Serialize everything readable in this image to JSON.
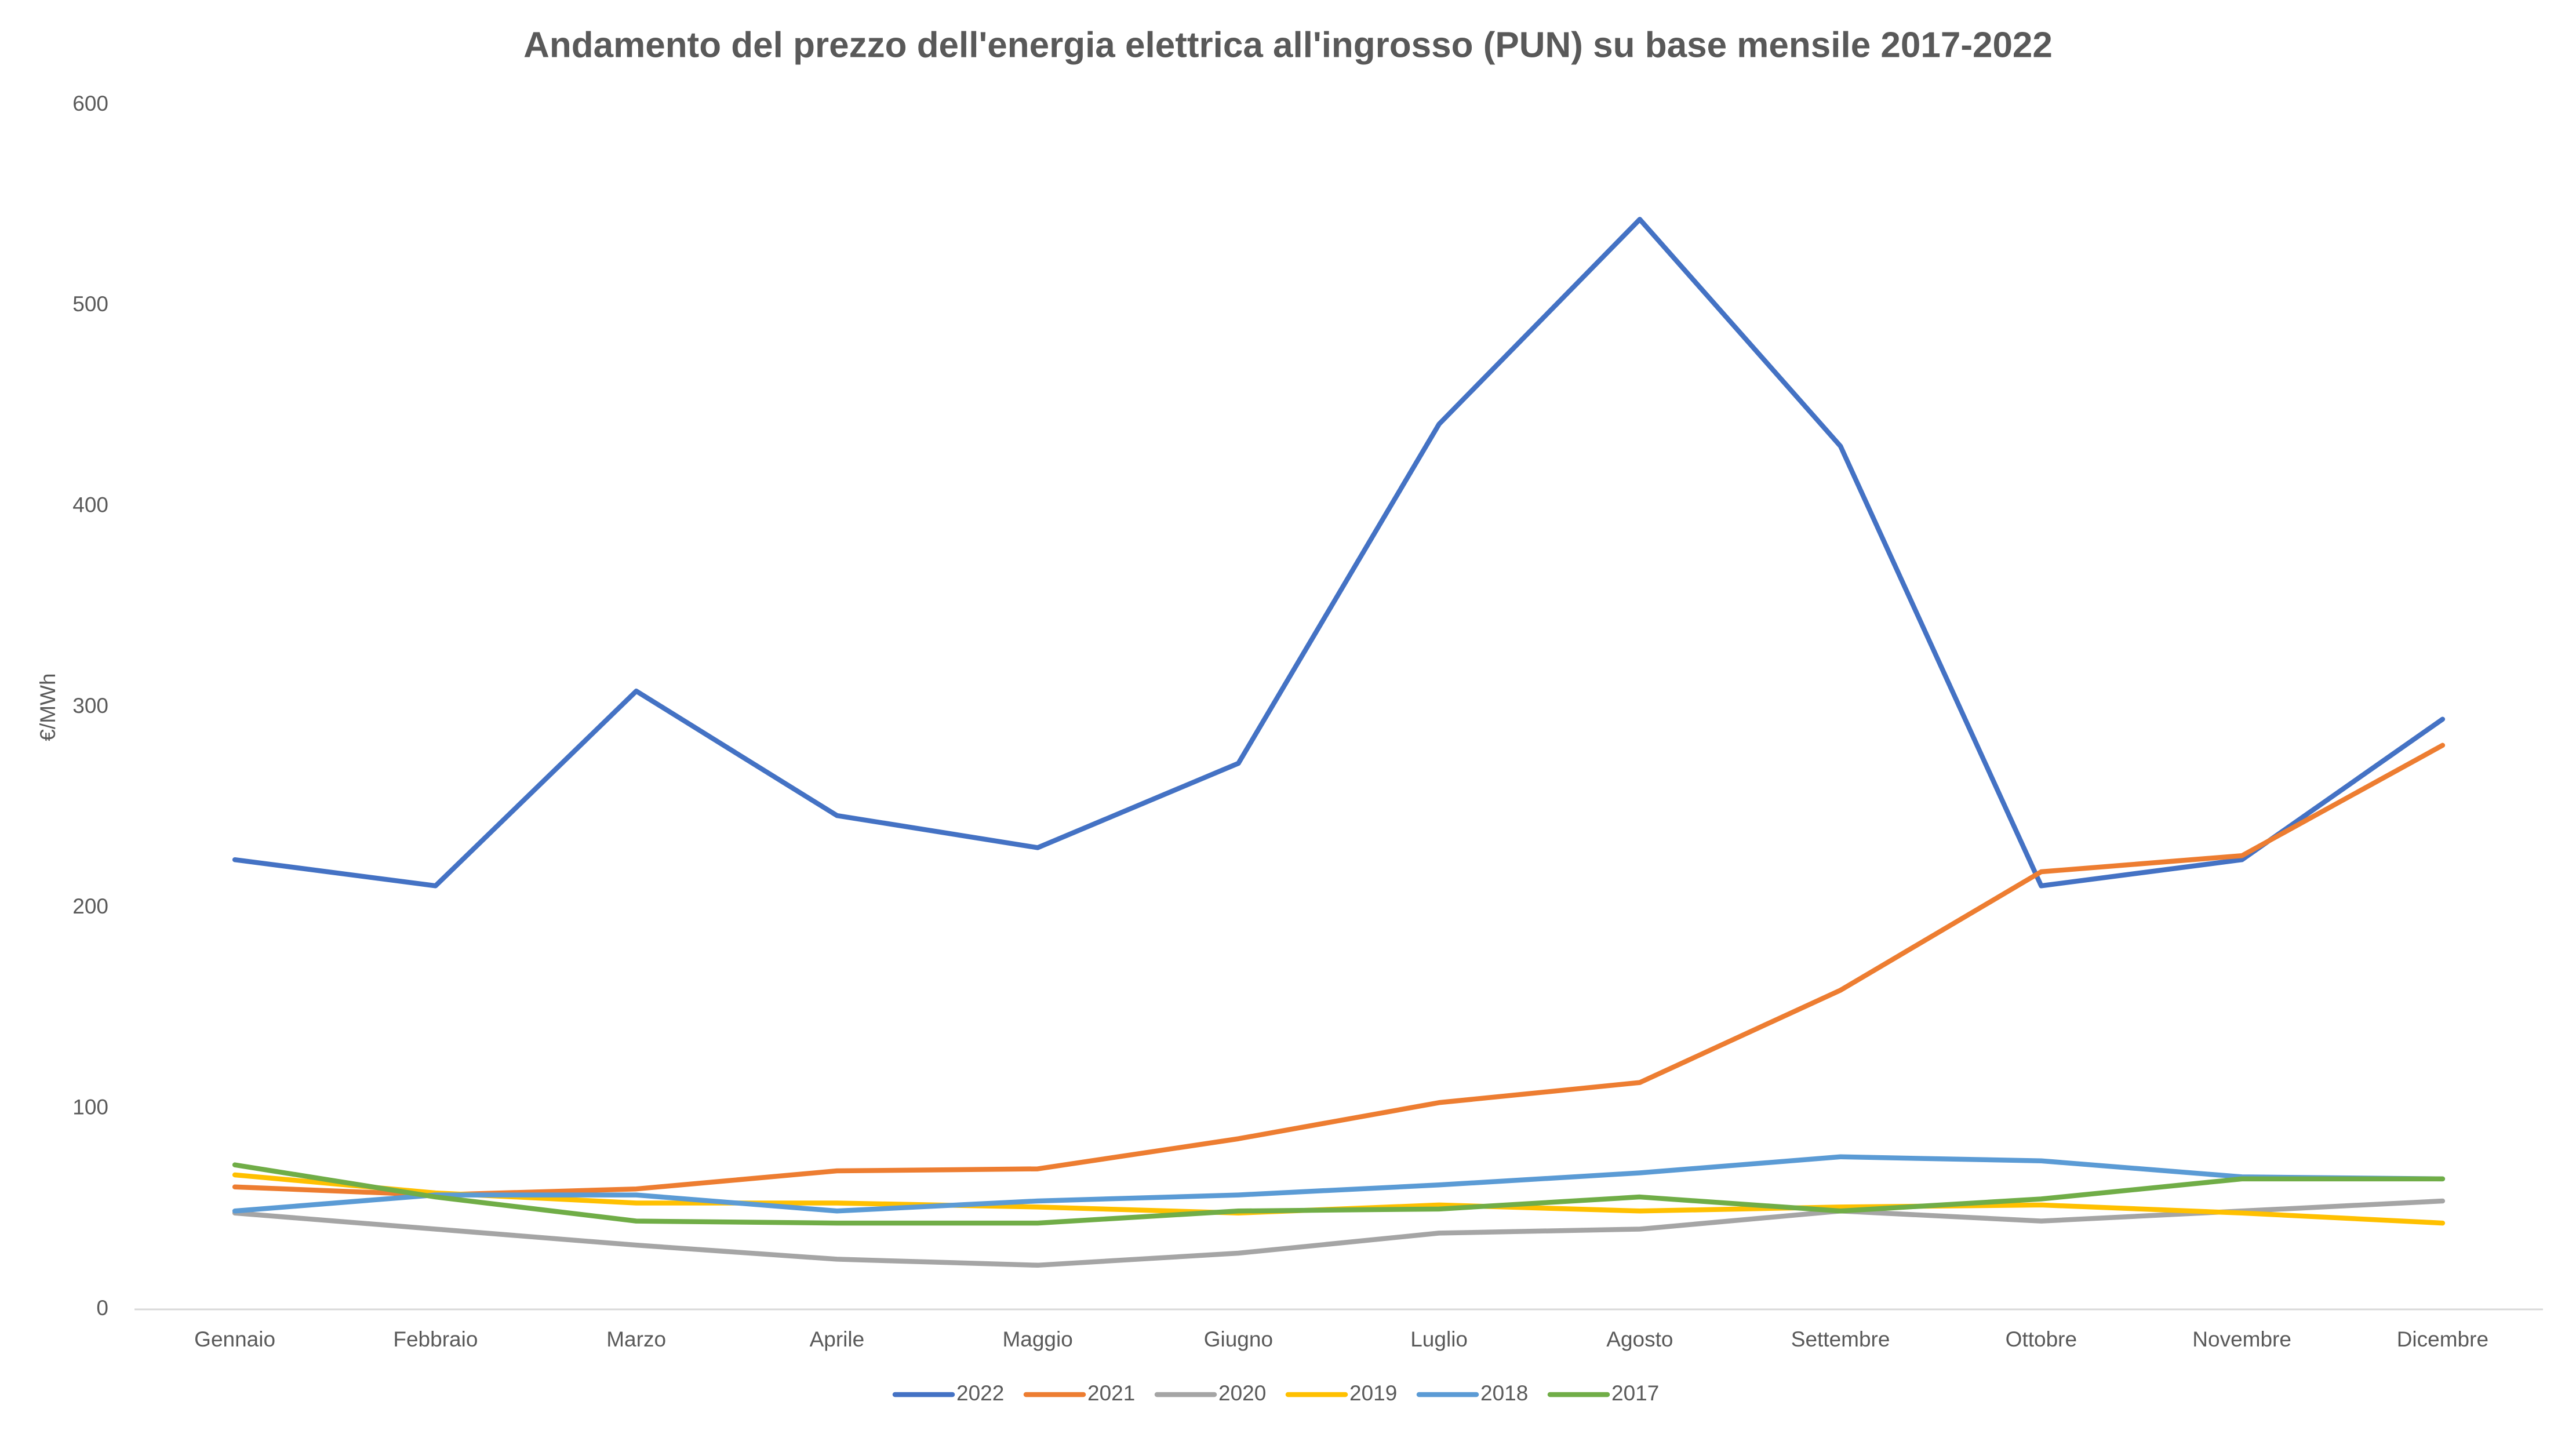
{
  "chart_data": {
    "type": "line",
    "title": "Andamento del prezzo dell'energia elettrica all'ingrosso (PUN) su base mensile 2017-2022",
    "y_label": "€/MWh",
    "categories": [
      "Gennaio",
      "Febbraio",
      "Marzo",
      "Aprile",
      "Maggio",
      "Giugno",
      "Luglio",
      "Agosto",
      "Settembre",
      "Ottobre",
      "Novembre",
      "Dicembre"
    ],
    "series": [
      {
        "name": "2022",
        "color": "#4472c4",
        "values": [
          224,
          211,
          308,
          246,
          230,
          272,
          441,
          543,
          430,
          211,
          224,
          294
        ]
      },
      {
        "name": "2021",
        "color": "#ed7d31",
        "values": [
          61,
          57,
          60,
          69,
          70,
          85,
          103,
          113,
          159,
          218,
          226,
          281
        ]
      },
      {
        "name": "2020",
        "color": "#a5a5a5",
        "values": [
          48,
          40,
          32,
          25,
          22,
          28,
          38,
          40,
          49,
          44,
          49,
          54
        ]
      },
      {
        "name": "2019",
        "color": "#ffc000",
        "values": [
          67,
          58,
          53,
          53,
          51,
          48,
          52,
          49,
          51,
          52,
          48,
          43
        ]
      },
      {
        "name": "2018",
        "color": "#5b9bd5",
        "values": [
          49,
          57,
          57,
          49,
          54,
          57,
          62,
          68,
          76,
          74,
          66,
          65
        ]
      },
      {
        "name": "2017",
        "color": "#70ad47",
        "values": [
          72,
          56,
          44,
          43,
          43,
          49,
          50,
          56,
          49,
          55,
          65,
          65
        ]
      }
    ],
    "ylim": [
      0,
      600
    ],
    "yticks": [
      0,
      100,
      200,
      300,
      400,
      500,
      600
    ],
    "grid": false,
    "legend": "bottom"
  }
}
